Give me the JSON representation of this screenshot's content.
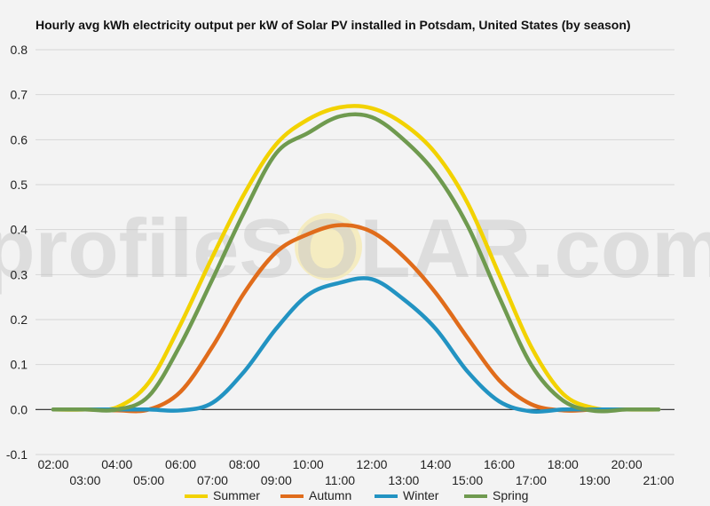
{
  "chart_data": {
    "type": "line",
    "title": "Hourly avg kWh electricity output per kW of Solar PV installed in Potsdam, United States (by season)",
    "xlabel": "",
    "ylabel": "",
    "ylim": [
      -0.1,
      0.8
    ],
    "yticks": [
      "0.8",
      "0.7",
      "0.6",
      "0.5",
      "0.4",
      "0.3",
      "0.2",
      "0.1",
      "0.0",
      "-0.1"
    ],
    "ytick_values": [
      0.8,
      0.7,
      0.6,
      0.5,
      0.4,
      0.3,
      0.2,
      0.1,
      0.0,
      -0.1
    ],
    "x": [
      "02:00",
      "03:00",
      "04:00",
      "05:00",
      "06:00",
      "07:00",
      "08:00",
      "09:00",
      "10:00",
      "11:00",
      "12:00",
      "13:00",
      "14:00",
      "15:00",
      "16:00",
      "17:00",
      "18:00",
      "19:00",
      "20:00",
      "21:00"
    ],
    "grid": true,
    "legend_position": "bottom",
    "series": [
      {
        "name": "Summer",
        "color": "#f2d200",
        "values": [
          0.0,
          0.0,
          0.005,
          0.06,
          0.19,
          0.34,
          0.48,
          0.59,
          0.645,
          0.672,
          0.67,
          0.635,
          0.57,
          0.46,
          0.3,
          0.14,
          0.035,
          0.003,
          0.0,
          0.0
        ]
      },
      {
        "name": "Autumn",
        "color": "#e06c1b",
        "values": [
          0.0,
          0.0,
          -0.002,
          0.0,
          0.04,
          0.14,
          0.26,
          0.35,
          0.39,
          0.41,
          0.395,
          0.34,
          0.26,
          0.16,
          0.065,
          0.012,
          -0.002,
          0.0,
          0.0,
          0.0
        ]
      },
      {
        "name": "Winter",
        "color": "#2293c2",
        "values": [
          0.0,
          0.0,
          0.0,
          0.0,
          -0.002,
          0.015,
          0.085,
          0.18,
          0.255,
          0.282,
          0.29,
          0.245,
          0.18,
          0.085,
          0.018,
          -0.004,
          0.0,
          0.0,
          0.0,
          0.0
        ]
      },
      {
        "name": "Spring",
        "color": "#6f9a4f",
        "values": [
          0.0,
          0.0,
          0.0,
          0.03,
          0.145,
          0.29,
          0.44,
          0.57,
          0.615,
          0.652,
          0.65,
          0.6,
          0.525,
          0.41,
          0.25,
          0.1,
          0.02,
          -0.003,
          0.0,
          0.0
        ]
      }
    ]
  },
  "watermark": "profileSOLAR.com"
}
